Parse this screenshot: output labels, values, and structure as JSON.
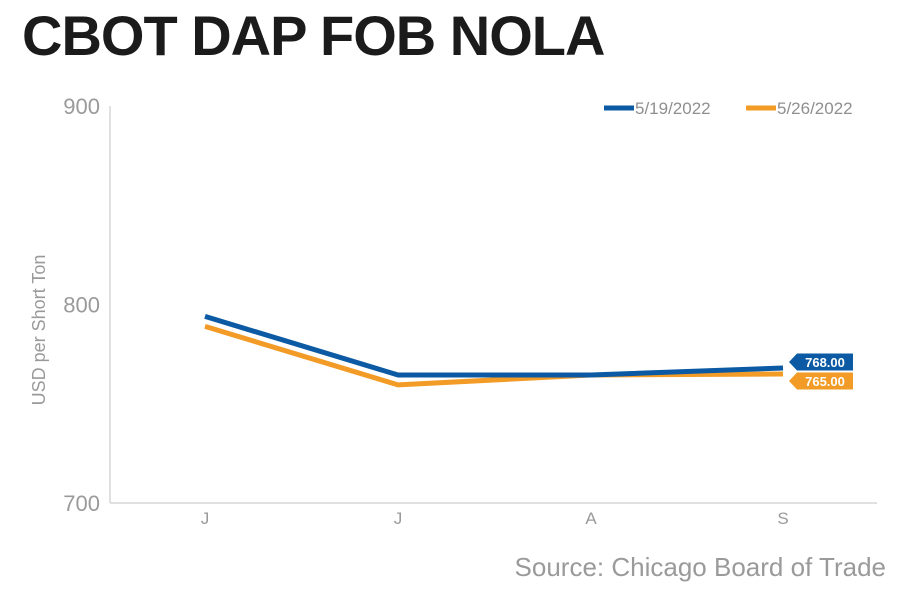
{
  "colors": {
    "series1": "#0b5aa3",
    "series2": "#f29b26",
    "axis": "#d6d6d6",
    "text": "#9a9a9a"
  },
  "source_text": "Source: Chicago Board of Trade",
  "chart_data": {
    "type": "line",
    "title": "CBOT DAP FOB NOLA",
    "ylabel": "USD per Short Ton",
    "xlabel": "",
    "categories": [
      "J",
      "J",
      "A",
      "S"
    ],
    "ylim": [
      700,
      900
    ],
    "yticks": [
      700,
      800,
      900
    ],
    "grid": false,
    "legend": "top-right",
    "series": [
      {
        "name": "5/19/2022",
        "color": "#0b5aa3",
        "values": [
          794,
          764.5,
          764.5,
          768
        ],
        "end_label": "768.00"
      },
      {
        "name": "5/26/2022",
        "color": "#f29b26",
        "values": [
          789,
          759.5,
          764.5,
          765
        ],
        "end_label": "765.00"
      }
    ]
  }
}
